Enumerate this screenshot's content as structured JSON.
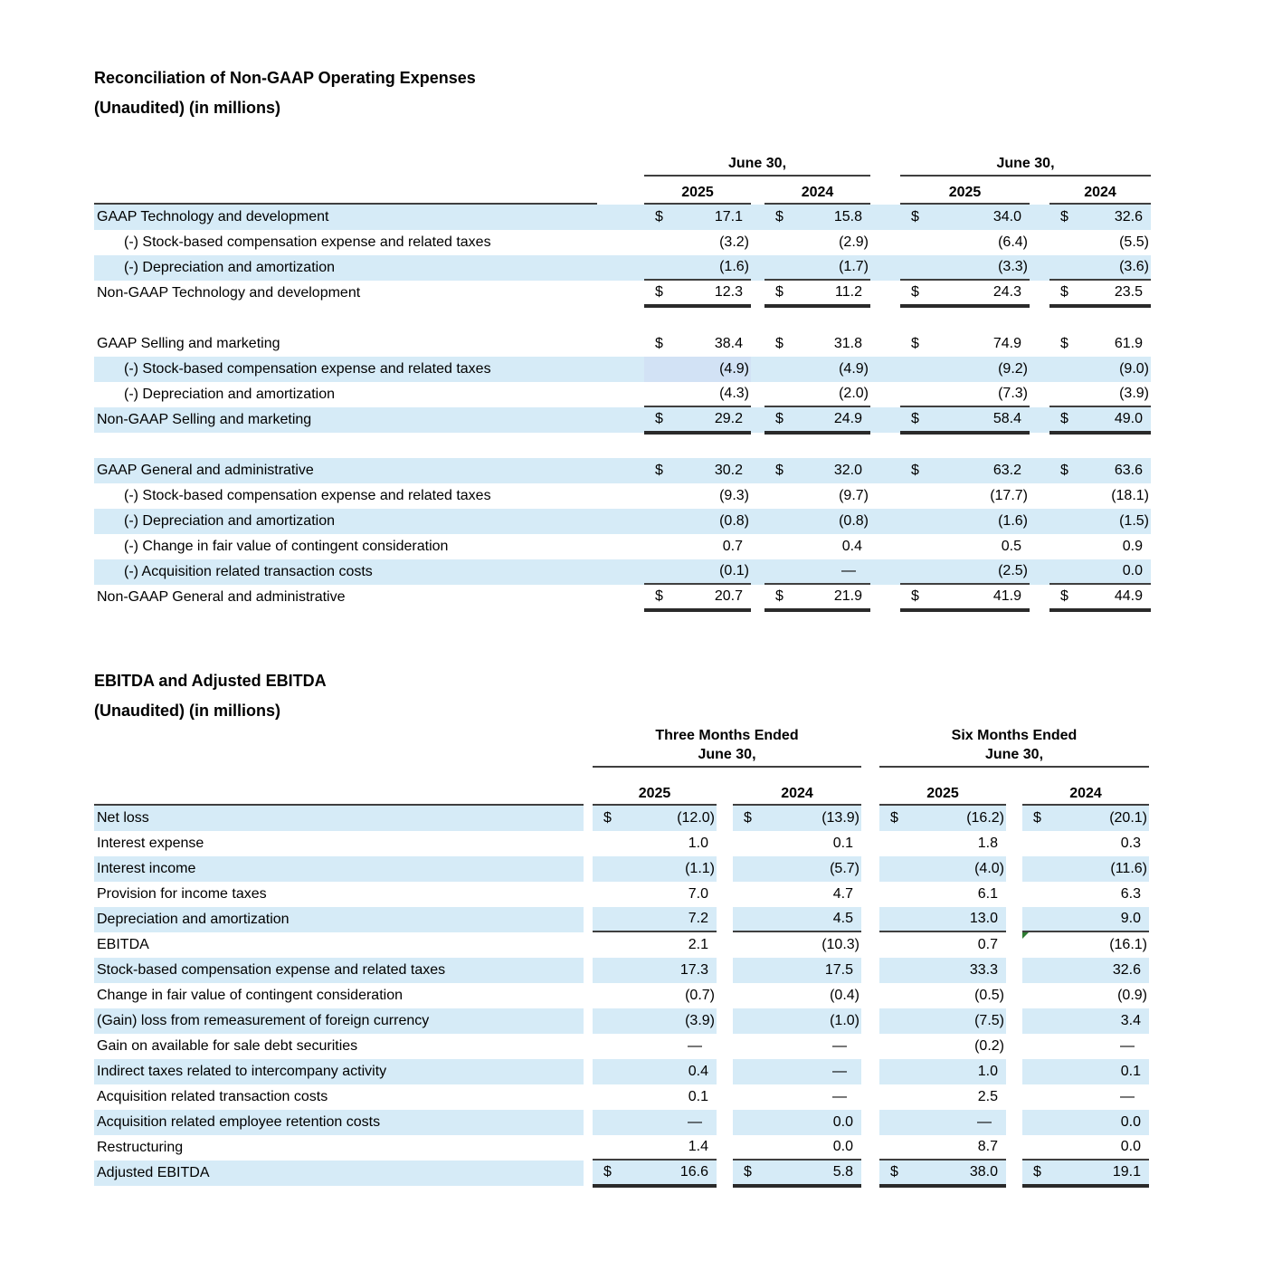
{
  "colors": {
    "row_highlight_blue": "#d6ebf7",
    "selected_cell_tint": "#d2e2f5",
    "rule_line": "#3f3f3f",
    "flag_green": "#2e7d32",
    "text": "#000000",
    "background": "#ffffff"
  },
  "table1": {
    "title_line1": "Reconciliation of Non-GAAP Operating Expenses",
    "title_line2": "(Unaudited) (in millions)",
    "groups": [
      {
        "line1": "June 30,"
      },
      {
        "line1": "June 30,"
      }
    ],
    "years": [
      "2025",
      "2024",
      "2025",
      "2024"
    ],
    "rows": [
      {
        "label": "GAAP Technology and development",
        "dollar": "$",
        "values": [
          "17.1",
          "15.8",
          "34.0",
          "32.6"
        ],
        "shade": "blue"
      },
      {
        "label": "(-) Stock-based compensation expense and related taxes",
        "indent": true,
        "dollar": "",
        "values": [
          "(3.2)",
          "(2.9)",
          "(6.4)",
          "(5.5)"
        ],
        "shade": "white"
      },
      {
        "label": "(-) Depreciation and amortization",
        "indent": true,
        "dollar": "",
        "values": [
          "(1.6)",
          "(1.7)",
          "(3.3)",
          "(3.6)"
        ],
        "shade": "blue",
        "rule": true
      },
      {
        "label": "Non-GAAP Technology and development",
        "dollar": "$",
        "values": [
          "12.3",
          "11.2",
          "24.3",
          "23.5"
        ],
        "shade": "white",
        "dbl": true
      },
      {
        "type": "spacer"
      },
      {
        "label": "GAAP Selling and marketing",
        "dollar": "$",
        "values": [
          "38.4",
          "31.8",
          "74.9",
          "61.9"
        ],
        "shade": "white"
      },
      {
        "label": "(-) Stock-based compensation expense and related taxes",
        "indent": true,
        "dollar": "",
        "values": [
          "(4.9)",
          "(4.9)",
          "(9.2)",
          "(9.0)"
        ],
        "shade": "blue",
        "tint_col": 0
      },
      {
        "label": "(-) Depreciation and amortization",
        "indent": true,
        "dollar": "",
        "values": [
          "(4.3)",
          "(2.0)",
          "(7.3)",
          "(3.9)"
        ],
        "shade": "white",
        "rule": true
      },
      {
        "label": "Non-GAAP Selling and marketing",
        "dollar": "$",
        "values": [
          "29.2",
          "24.9",
          "58.4",
          "49.0"
        ],
        "shade": "blue",
        "dbl": true
      },
      {
        "type": "spacer"
      },
      {
        "label": "GAAP General and administrative",
        "dollar": "$",
        "values": [
          "30.2",
          "32.0",
          "63.2",
          "63.6"
        ],
        "shade": "blue"
      },
      {
        "label": "(-) Stock-based compensation expense and related taxes",
        "indent": true,
        "dollar": "",
        "values": [
          "(9.3)",
          "(9.7)",
          "(17.7)",
          "(18.1)"
        ],
        "shade": "white"
      },
      {
        "label": "(-) Depreciation and amortization",
        "indent": true,
        "dollar": "",
        "values": [
          "(0.8)",
          "(0.8)",
          "(1.6)",
          "(1.5)"
        ],
        "shade": "blue"
      },
      {
        "label": "(-) Change in fair value of contingent consideration",
        "indent": true,
        "dollar": "",
        "values": [
          "0.7",
          "0.4",
          "0.5",
          "0.9"
        ],
        "shade": "white"
      },
      {
        "label": "(-) Acquisition related transaction costs",
        "indent": true,
        "dollar": "",
        "values": [
          "(0.1)",
          "—",
          "(2.5)",
          "0.0"
        ],
        "shade": "blue",
        "rule": true
      },
      {
        "label": "Non-GAAP General and administrative",
        "dollar": "$",
        "values": [
          "20.7",
          "21.9",
          "41.9",
          "44.9"
        ],
        "shade": "white",
        "dbl": true
      }
    ]
  },
  "table2": {
    "title_line1": "EBITDA and Adjusted EBITDA",
    "title_line2": "(Unaudited) (in millions)",
    "groups": [
      {
        "line1": "Three Months Ended",
        "line2": "June 30,"
      },
      {
        "line1": "Six Months Ended",
        "line2": "June 30,"
      }
    ],
    "years": [
      "2025",
      "2024",
      "2025",
      "2024"
    ],
    "rows": [
      {
        "label": "Net loss",
        "dollar": "$",
        "values": [
          "(12.0)",
          "(13.9)",
          "(16.2)",
          "(20.1)"
        ],
        "shade": "blue"
      },
      {
        "label": "Interest expense",
        "dollar": "",
        "values": [
          "1.0",
          "0.1",
          "1.8",
          "0.3"
        ],
        "shade": "white"
      },
      {
        "label": "Interest income",
        "dollar": "",
        "values": [
          "(1.1)",
          "(5.7)",
          "(4.0)",
          "(11.6)"
        ],
        "shade": "blue"
      },
      {
        "label": "Provision for income taxes",
        "dollar": "",
        "values": [
          "7.0",
          "4.7",
          "6.1",
          "6.3"
        ],
        "shade": "white"
      },
      {
        "label": "Depreciation and amortization",
        "dollar": "",
        "values": [
          "7.2",
          "4.5",
          "13.0",
          "9.0"
        ],
        "shade": "blue",
        "rule": true
      },
      {
        "label": "EBITDA",
        "dollar": "",
        "values": [
          "2.1",
          "(10.3)",
          "0.7",
          "(16.1)"
        ],
        "shade": "white",
        "flag_col": 3
      },
      {
        "label": "Stock-based compensation expense and related taxes",
        "dollar": "",
        "values": [
          "17.3",
          "17.5",
          "33.3",
          "32.6"
        ],
        "shade": "blue"
      },
      {
        "label": "Change in fair value of contingent consideration",
        "dollar": "",
        "values": [
          "(0.7)",
          "(0.4)",
          "(0.5)",
          "(0.9)"
        ],
        "shade": "white"
      },
      {
        "label": "(Gain) loss from remeasurement of foreign currency",
        "dollar": "",
        "values": [
          "(3.9)",
          "(1.0)",
          "(7.5)",
          "3.4"
        ],
        "shade": "blue"
      },
      {
        "label": "Gain on available for sale debt securities",
        "dollar": "",
        "values": [
          "—",
          "—",
          "(0.2)",
          "—"
        ],
        "shade": "white"
      },
      {
        "label": "Indirect taxes related to intercompany activity",
        "dollar": "",
        "values": [
          "0.4",
          "—",
          "1.0",
          "0.1"
        ],
        "shade": "blue"
      },
      {
        "label": "Acquisition related transaction costs",
        "dollar": "",
        "values": [
          "0.1",
          "—",
          "2.5",
          "—"
        ],
        "shade": "white"
      },
      {
        "label": "Acquisition related employee retention costs",
        "dollar": "",
        "values": [
          "—",
          "0.0",
          "—",
          "0.0"
        ],
        "shade": "blue"
      },
      {
        "label": "Restructuring",
        "dollar": "",
        "values": [
          "1.4",
          "0.0",
          "8.7",
          "0.0"
        ],
        "shade": "white",
        "rule": true
      },
      {
        "label": "Adjusted EBITDA",
        "dollar": "$",
        "values": [
          "16.6",
          "5.8",
          "38.0",
          "19.1"
        ],
        "shade": "blue",
        "dbl": true
      }
    ]
  }
}
